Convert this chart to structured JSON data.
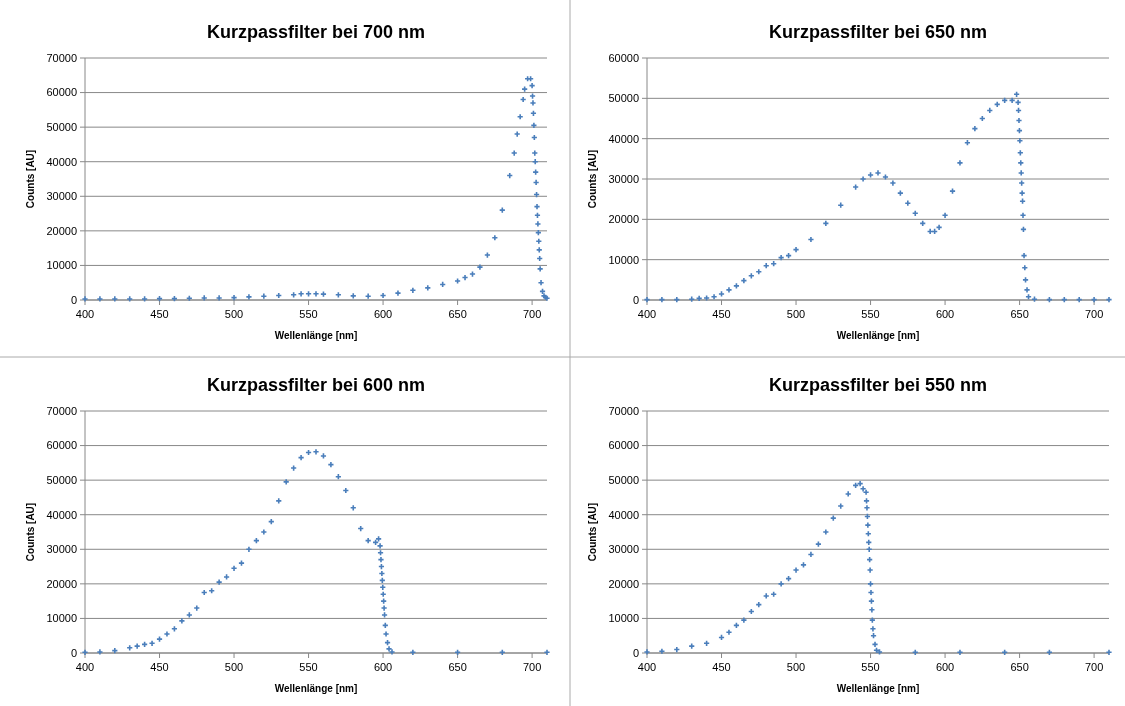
{
  "chart_data": [
    {
      "type": "scatter",
      "title": "Kurzpassfilter bei 700 nm",
      "xlabel": "Wellenlänge [nm]",
      "ylabel": "Counts [AU]",
      "xlim": [
        400,
        710
      ],
      "ylim": [
        0,
        70000
      ],
      "xticks": [
        400,
        450,
        500,
        550,
        600,
        650,
        700
      ],
      "yticks": [
        0,
        10000,
        20000,
        30000,
        40000,
        50000,
        60000,
        70000
      ],
      "grid": "y",
      "marker": "cross",
      "series": [
        {
          "color": "#4a7ebb",
          "x": [
            400,
            410,
            420,
            430,
            440,
            450,
            460,
            470,
            480,
            490,
            500,
            510,
            520,
            530,
            540,
            545,
            550,
            555,
            560,
            570,
            580,
            590,
            600,
            610,
            620,
            630,
            640,
            650,
            655,
            660,
            665,
            670,
            675,
            680,
            685,
            688,
            690,
            692,
            694,
            695,
            697,
            699,
            700,
            700.3,
            700.6,
            700.9,
            701.2,
            701.5,
            701.8,
            702.1,
            702.4,
            702.7,
            703,
            703.3,
            703.6,
            703.9,
            704.2,
            704.5,
            704.8,
            705.1,
            705.4,
            706,
            707,
            708,
            709,
            710
          ],
          "values": [
            300,
            300,
            300,
            300,
            300,
            400,
            400,
            500,
            600,
            600,
            700,
            900,
            1100,
            1300,
            1500,
            1800,
            1800,
            1800,
            1700,
            1500,
            1200,
            1100,
            1300,
            2000,
            2800,
            3500,
            4500,
            5500,
            6500,
            7500,
            9500,
            13000,
            18000,
            26000,
            36000,
            42500,
            48000,
            53000,
            58000,
            61000,
            64000,
            64000,
            62000,
            59000,
            57000,
            54000,
            50500,
            47000,
            42500,
            40000,
            37000,
            34000,
            30500,
            27000,
            24500,
            22000,
            19500,
            17000,
            14500,
            12000,
            9000,
            5000,
            2500,
            1200,
            800,
            500
          ]
        }
      ]
    },
    {
      "type": "scatter",
      "title": "Kurzpassfilter bei 650 nm",
      "xlabel": "Wellenlänge [nm]",
      "ylabel": "Counts [AU]",
      "xlim": [
        400,
        710
      ],
      "ylim": [
        0,
        60000
      ],
      "xticks": [
        400,
        450,
        500,
        550,
        600,
        650,
        700
      ],
      "yticks": [
        0,
        10000,
        20000,
        30000,
        40000,
        50000,
        60000
      ],
      "grid": "y",
      "marker": "cross",
      "series": [
        {
          "color": "#4a7ebb",
          "x": [
            400,
            410,
            420,
            430,
            435,
            440,
            445,
            450,
            455,
            460,
            465,
            470,
            475,
            480,
            485,
            490,
            495,
            500,
            510,
            520,
            530,
            540,
            545,
            550,
            555,
            560,
            565,
            570,
            575,
            580,
            585,
            590,
            593,
            596,
            600,
            605,
            610,
            615,
            620,
            625,
            630,
            635,
            640,
            645,
            648,
            649,
            649.3,
            649.6,
            649.9,
            650.2,
            650.5,
            650.8,
            651.1,
            651.4,
            651.7,
            652,
            652.3,
            652.6,
            653,
            653.5,
            654,
            655,
            656,
            660,
            670,
            680,
            690,
            700,
            710
          ],
          "values": [
            100,
            100,
            100,
            200,
            400,
            500,
            800,
            1500,
            2500,
            3500,
            4800,
            6000,
            7000,
            8500,
            9000,
            10500,
            11000,
            12500,
            15000,
            19000,
            23500,
            28000,
            30000,
            31000,
            31500,
            30500,
            29000,
            26500,
            24000,
            21500,
            19000,
            17000,
            17000,
            18000,
            21000,
            27000,
            34000,
            39000,
            42500,
            45000,
            47000,
            48500,
            49500,
            49500,
            51000,
            49000,
            47000,
            44500,
            42000,
            39500,
            36500,
            34000,
            31500,
            29000,
            26500,
            24500,
            21000,
            17500,
            11000,
            8000,
            5000,
            2500,
            800,
            200,
            100,
            100,
            100,
            100,
            100
          ]
        }
      ]
    },
    {
      "type": "scatter",
      "title": "Kurzpassfilter bei 600 nm",
      "xlabel": "Wellenlänge [nm]",
      "ylabel": "Counts [AU]",
      "xlim": [
        400,
        710
      ],
      "ylim": [
        0,
        70000
      ],
      "xticks": [
        400,
        450,
        500,
        550,
        600,
        650,
        700
      ],
      "yticks": [
        0,
        10000,
        20000,
        30000,
        40000,
        50000,
        60000,
        70000
      ],
      "grid": "y",
      "marker": "cross",
      "series": [
        {
          "color": "#4a7ebb",
          "x": [
            400,
            410,
            420,
            430,
            435,
            440,
            445,
            450,
            455,
            460,
            465,
            470,
            475,
            480,
            485,
            490,
            495,
            500,
            505,
            510,
            515,
            520,
            525,
            530,
            535,
            540,
            545,
            550,
            555,
            560,
            565,
            570,
            575,
            580,
            585,
            590,
            595,
            597,
            598,
            598.3,
            598.6,
            598.9,
            599.2,
            599.5,
            599.8,
            600.1,
            600.4,
            600.7,
            601,
            601.5,
            602,
            603,
            604,
            606,
            620,
            650,
            680,
            710
          ],
          "values": [
            200,
            300,
            700,
            1500,
            2000,
            2500,
            2800,
            4000,
            5500,
            7000,
            9300,
            11000,
            13000,
            17500,
            18000,
            20500,
            22000,
            24500,
            26000,
            30000,
            32500,
            35000,
            38000,
            44000,
            49500,
            53500,
            56500,
            58000,
            58200,
            57000,
            54500,
            51000,
            47000,
            42000,
            36000,
            32500,
            32000,
            33000,
            31000,
            29000,
            27000,
            25000,
            23000,
            21000,
            19000,
            17000,
            15000,
            13000,
            11000,
            8000,
            5500,
            3000,
            1200,
            300,
            200,
            200,
            200,
            200
          ]
        }
      ]
    },
    {
      "type": "scatter",
      "title": "Kurzpassfilter bei 550 nm",
      "xlabel": "Wellenlänge [nm]",
      "ylabel": "Counts [AU]",
      "xlim": [
        400,
        710
      ],
      "ylim": [
        0,
        70000
      ],
      "xticks": [
        400,
        450,
        500,
        550,
        600,
        650,
        700
      ],
      "yticks": [
        0,
        10000,
        20000,
        30000,
        40000,
        50000,
        60000,
        70000
      ],
      "grid": "y",
      "marker": "cross",
      "series": [
        {
          "color": "#4a7ebb",
          "x": [
            400,
            410,
            420,
            430,
            440,
            450,
            455,
            460,
            465,
            470,
            475,
            480,
            485,
            490,
            495,
            500,
            505,
            510,
            515,
            520,
            525,
            530,
            535,
            540,
            543,
            545,
            547,
            547.3,
            547.6,
            547.9,
            548.2,
            548.5,
            548.8,
            549.1,
            549.4,
            549.7,
            550,
            550.3,
            550.6,
            550.9,
            551.2,
            551.6,
            552,
            553,
            554,
            556,
            580,
            610,
            640,
            670,
            710
          ],
          "values": [
            300,
            500,
            1000,
            2000,
            2800,
            4500,
            6000,
            8000,
            9500,
            12000,
            14000,
            16500,
            17000,
            20000,
            21500,
            24000,
            25500,
            28500,
            31500,
            35000,
            39000,
            42500,
            46000,
            48500,
            49000,
            47500,
            46500,
            44000,
            42000,
            39500,
            37000,
            34500,
            32000,
            30000,
            27000,
            24000,
            20000,
            17500,
            15000,
            12500,
            9500,
            7000,
            5000,
            2500,
            800,
            300,
            200,
            200,
            200,
            200,
            200
          ]
        }
      ]
    }
  ]
}
